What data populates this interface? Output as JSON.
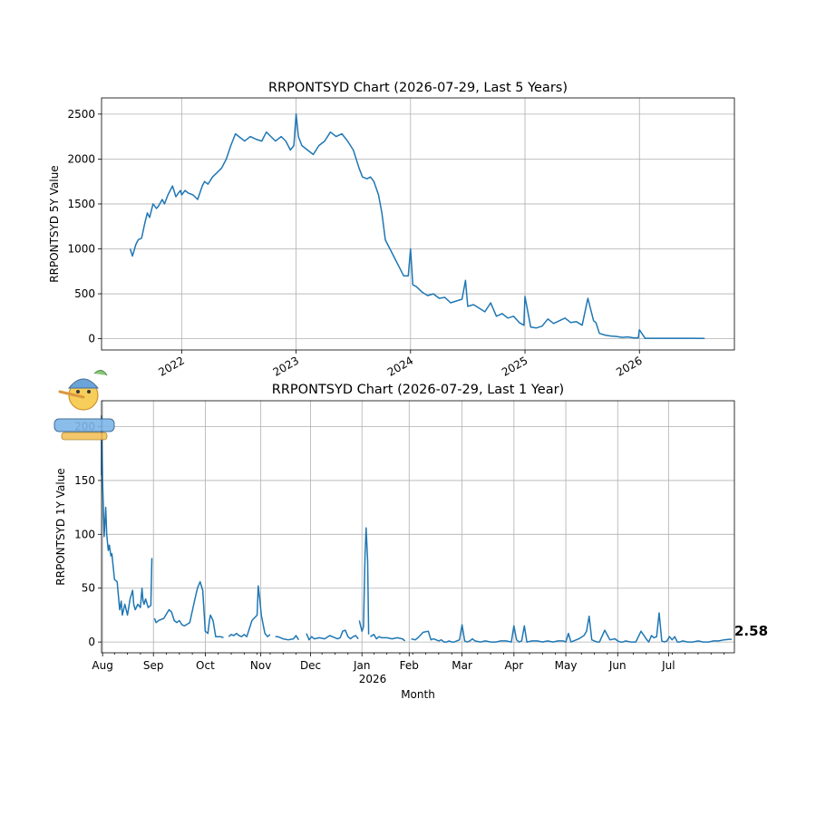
{
  "chart_data": [
    {
      "type": "line",
      "title": "RRPONTSYD Chart (2026-07-29, Last 5 Years)",
      "ylabel": "RRPONTSYD 5Y Value",
      "xlabel": "",
      "ylim": [
        -125,
        2680
      ],
      "xlim": [
        2021.3,
        2026.83
      ],
      "yticks": [
        0,
        500,
        1000,
        1500,
        2000,
        2500
      ],
      "xticks": [
        2022,
        2023,
        2024,
        2025,
        2026
      ],
      "xticklabels": [
        "2022",
        "2023",
        "2024",
        "2025",
        "2026"
      ],
      "grid": true,
      "series": [
        {
          "x": [
            2021.55,
            2021.57,
            2021.6,
            2021.62,
            2021.65,
            2021.68,
            2021.7,
            2021.72,
            2021.75,
            2021.78,
            2021.8,
            2021.83,
            2021.85,
            2021.88,
            2021.9,
            2021.92,
            2021.95,
            2021.97,
            2021.99,
            2022.0,
            2022.03,
            2022.06,
            2022.1,
            2022.14,
            2022.18,
            2022.2,
            2022.23,
            2022.27,
            2022.31,
            2022.35,
            2022.39,
            2022.43,
            2022.47,
            2022.5,
            2022.55,
            2022.6,
            2022.65,
            2022.7,
            2022.74,
            2022.78,
            2022.82,
            2022.87,
            2022.91,
            2022.95,
            2022.98,
            2023.0,
            2023.02,
            2023.05,
            2023.1,
            2023.15,
            2023.2,
            2023.25,
            2023.3,
            2023.35,
            2023.4,
            2023.45,
            2023.5,
            2023.55,
            2023.58,
            2023.62,
            2023.65,
            2023.68,
            2023.72,
            2023.75,
            2023.78,
            2023.82,
            2023.86,
            2023.9,
            2023.94,
            2023.98,
            2024.0,
            2024.02,
            2024.05,
            2024.1,
            2024.15,
            2024.2,
            2024.25,
            2024.3,
            2024.35,
            2024.4,
            2024.45,
            2024.48,
            2024.5,
            2024.55,
            2024.6,
            2024.65,
            2024.7,
            2024.75,
            2024.8,
            2024.85,
            2024.9,
            2024.95,
            2024.99,
            2025.0,
            2025.05,
            2025.1,
            2025.15,
            2025.2,
            2025.25,
            2025.3,
            2025.35,
            2025.4,
            2025.45,
            2025.5,
            2025.55,
            2025.6,
            2025.62,
            2025.65,
            2025.7,
            2025.75,
            2025.8,
            2025.85,
            2025.9,
            2025.95,
            2025.99,
            2026.0,
            2026.05,
            2026.15,
            2026.3,
            2026.45,
            2026.57
          ],
          "y": [
            1000,
            920,
            1050,
            1100,
            1120,
            1300,
            1400,
            1350,
            1500,
            1450,
            1480,
            1550,
            1500,
            1600,
            1650,
            1700,
            1580,
            1620,
            1650,
            1600,
            1650,
            1620,
            1600,
            1550,
            1700,
            1750,
            1720,
            1800,
            1850,
            1900,
            2000,
            2150,
            2280,
            2250,
            2200,
            2250,
            2220,
            2200,
            2300,
            2250,
            2200,
            2250,
            2200,
            2100,
            2150,
            2500,
            2250,
            2150,
            2100,
            2050,
            2150,
            2200,
            2300,
            2250,
            2280,
            2200,
            2100,
            1900,
            1800,
            1780,
            1800,
            1750,
            1600,
            1400,
            1100,
            1000,
            900,
            800,
            700,
            700,
            1000,
            600,
            580,
            520,
            480,
            500,
            450,
            460,
            400,
            420,
            440,
            650,
            360,
            380,
            340,
            300,
            400,
            250,
            280,
            230,
            250,
            180,
            150,
            470,
            130,
            120,
            140,
            220,
            170,
            200,
            230,
            180,
            190,
            150,
            450,
            200,
            180,
            60,
            40,
            30,
            25,
            15,
            20,
            10,
            10,
            100,
            5,
            5,
            5,
            5,
            3
          ]
        }
      ]
    },
    {
      "type": "line",
      "title": "RRPONTSYD Chart (2026-07-29, Last 1 Year)",
      "ylabel": "RRPONTSYD 1Y Value",
      "xlabel": "Month",
      "ylim": [
        -10,
        224
      ],
      "xlim": [
        0,
        12.2
      ],
      "yticks": [
        0,
        50,
        100,
        150,
        200
      ],
      "xticks": [
        0.02,
        1.0,
        2.0,
        3.07,
        4.03,
        5.02,
        5.93,
        6.95,
        7.95,
        8.95,
        9.95,
        10.93
      ],
      "xticklabels": [
        "Aug",
        "Sep",
        "Oct",
        "Nov",
        "Dec",
        "Jan",
        "Feb",
        "Mar",
        "Apr",
        "May",
        "Jun",
        "Jul"
      ],
      "year_label": "2026",
      "last_value_label": "2.58",
      "grid": true,
      "series": [
        {
          "segments": [
            {
              "x": [
                -0.15,
                -0.1,
                -0.05,
                0.0,
                0.02,
                0.05,
                0.08,
                0.1,
                0.13,
                0.15,
                0.18,
                0.2,
                0.25,
                0.3,
                0.35,
                0.38,
                0.4,
                0.45,
                0.5,
                0.55,
                0.6,
                0.62,
                0.65,
                0.7,
                0.75,
                0.78,
                0.8,
                0.82,
                0.85,
                0.9,
                0.95,
                0.97
              ],
              "y": [
                168,
                155,
                200,
                210,
                150,
                98,
                125,
                100,
                85,
                90,
                80,
                82,
                58,
                56,
                30,
                38,
                25,
                35,
                25,
                40,
                48,
                35,
                30,
                35,
                32,
                50,
                38,
                35,
                40,
                32,
                34,
                78
              ]
            },
            {
              "x": [
                1.02,
                1.05,
                1.1,
                1.2,
                1.3,
                1.35,
                1.4,
                1.45,
                1.5,
                1.55,
                1.6,
                1.7,
                1.8,
                1.85,
                1.9,
                1.95,
                2.0,
                2.05,
                2.08,
                2.1,
                2.15,
                2.2,
                2.25,
                2.3,
                2.35
              ],
              "y": [
                22,
                18,
                20,
                22,
                30,
                28,
                20,
                18,
                20,
                16,
                15,
                18,
                40,
                50,
                56,
                48,
                10,
                8,
                20,
                25,
                20,
                5,
                5,
                5,
                4
              ]
            },
            {
              "x": [
                2.45,
                2.5,
                2.55,
                2.6,
                2.65,
                2.7,
                2.75,
                2.8,
                2.9,
                3.0,
                3.02,
                3.05,
                3.08,
                3.12,
                3.15,
                3.2,
                3.25
              ],
              "y": [
                5,
                7,
                6,
                8,
                6,
                5,
                7,
                5,
                20,
                25,
                52,
                40,
                25,
                15,
                8,
                5,
                7
              ]
            },
            {
              "x": [
                3.35,
                3.4,
                3.5,
                3.6,
                3.7,
                3.75,
                3.8
              ],
              "y": [
                5,
                5,
                3,
                2,
                3,
                6,
                2
              ]
            },
            {
              "x": [
                3.95,
                4.0,
                4.05,
                4.1,
                4.2,
                4.3,
                4.4,
                4.5,
                4.55,
                4.6,
                4.65,
                4.7,
                4.75,
                4.8,
                4.85,
                4.9,
                4.95
              ],
              "y": [
                8,
                2,
                5,
                3,
                4,
                3,
                6,
                4,
                3,
                4,
                10,
                11,
                5,
                3,
                5,
                6,
                3
              ]
            },
            {
              "x": [
                4.97,
                5.02,
                5.05,
                5.08,
                5.1,
                5.13,
                5.15
              ],
              "y": [
                20,
                10,
                14,
                80,
                106,
                75,
                7
              ]
            },
            {
              "x": [
                5.18,
                5.25,
                5.3,
                5.35,
                5.4,
                5.5,
                5.6,
                5.7,
                5.8,
                5.85
              ],
              "y": [
                5,
                7,
                3,
                5,
                4,
                4,
                3,
                4,
                3,
                1
              ]
            },
            {
              "x": [
                5.97,
                6.05,
                6.1,
                6.2,
                6.3,
                6.35,
                6.4,
                6.45,
                6.5,
                6.55,
                6.6,
                6.65,
                6.7,
                6.75,
                6.8,
                6.9,
                6.95,
                7.0,
                7.05,
                7.1,
                7.15,
                7.2,
                7.3,
                7.4,
                7.5,
                7.6,
                7.7,
                7.8,
                7.9,
                7.95,
                8.0,
                8.05,
                8.1,
                8.15,
                8.2,
                8.3,
                8.4,
                8.5,
                8.6,
                8.7,
                8.8,
                8.9,
                8.95,
                9.0,
                9.05,
                9.1,
                9.2,
                9.3,
                9.35,
                9.4,
                9.45,
                9.5,
                9.55,
                9.6,
                9.7,
                9.8,
                9.9,
                9.95,
                10.0,
                10.05,
                10.1,
                10.2,
                10.3,
                10.4,
                10.5,
                10.55,
                10.6,
                10.65,
                10.7,
                10.75,
                10.8,
                10.85,
                10.9,
                10.95,
                11.0,
                11.05,
                11.1,
                11.15,
                11.2,
                11.3,
                11.4,
                11.5,
                11.6,
                11.7,
                11.8,
                11.9,
                12.0,
                12.1,
                12.15
              ],
              "y": [
                3,
                2,
                4,
                9,
                10,
                2,
                3,
                2,
                1,
                2,
                0,
                0,
                1,
                0,
                0,
                2,
                16,
                1,
                0,
                1,
                3,
                1,
                0,
                1,
                0,
                0,
                1,
                1,
                0,
                15,
                2,
                0,
                1,
                15,
                0,
                1,
                1,
                0,
                1,
                0,
                1,
                1,
                0,
                8,
                0,
                1,
                3,
                6,
                10,
                24,
                2,
                1,
                0,
                0,
                11,
                2,
                3,
                1,
                0,
                0,
                1,
                0,
                0,
                10,
                3,
                0,
                6,
                4,
                5,
                27,
                1,
                0,
                1,
                5,
                2,
                5,
                0,
                0,
                1,
                0,
                0,
                1,
                0,
                0,
                1,
                1,
                2,
                2.58,
                2.58
              ]
            }
          ]
        }
      ]
    }
  ]
}
